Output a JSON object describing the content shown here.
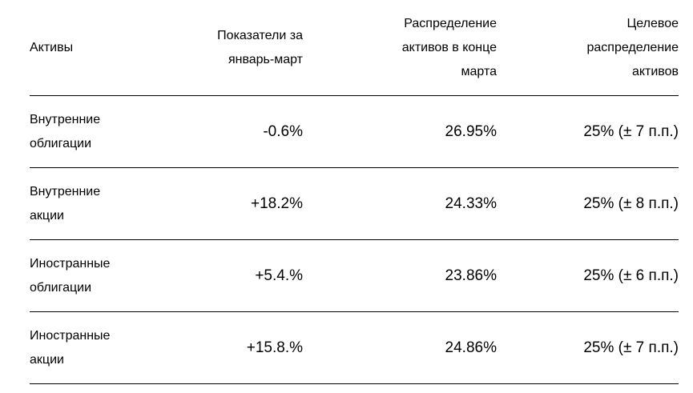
{
  "colors": {
    "background": "#ffffff",
    "text": "#000000",
    "divider": "#000000"
  },
  "table": {
    "header": {
      "assets": [
        "Активы"
      ],
      "indicators": [
        "Показатели за",
        "январь-март"
      ],
      "allocation": [
        "Распределение",
        "активов в конце",
        "марта"
      ],
      "target": [
        "Целевое",
        "распределение",
        "активов"
      ]
    },
    "rows": [
      {
        "asset_lines": [
          "Внутренние",
          "облигации"
        ],
        "indicator": "-0.6%",
        "allocation": "26.95%",
        "target": "25% (± 7 п.п.)"
      },
      {
        "asset_lines": [
          "Внутренние",
          "акции"
        ],
        "indicator": "+18.2%",
        "allocation": "24.33%",
        "target": "25% (± 8 п.п.)"
      },
      {
        "asset_lines": [
          "Иностранные",
          "облигации"
        ],
        "indicator": "+5.4.%",
        "allocation": "23.86%",
        "target": "25% (± 6 п.п.)"
      },
      {
        "asset_lines": [
          "Иностранные",
          "акции"
        ],
        "indicator": "+15.8.%",
        "allocation": "24.86%",
        "target": "25% (± 7 п.п.)"
      }
    ]
  },
  "chart_data": {
    "type": "table",
    "columns": [
      "Активы",
      "Показатели за январь-март",
      "Распределение активов в конце марта",
      "Целевое распределение активов"
    ],
    "rows": [
      [
        "Внутренние облигации",
        "-0.6%",
        "26.95%",
        "25% (± 7 п.п.)"
      ],
      [
        "Внутренние акции",
        "+18.2%",
        "24.33%",
        "25% (± 8 п.п.)"
      ],
      [
        "Иностранные облигации",
        "+5.4.%",
        "23.86%",
        "25% (± 6 п.п.)"
      ],
      [
        "Иностранные акции",
        "+15.8.%",
        "24.86%",
        "25% (± 7 п.п.)"
      ]
    ]
  }
}
